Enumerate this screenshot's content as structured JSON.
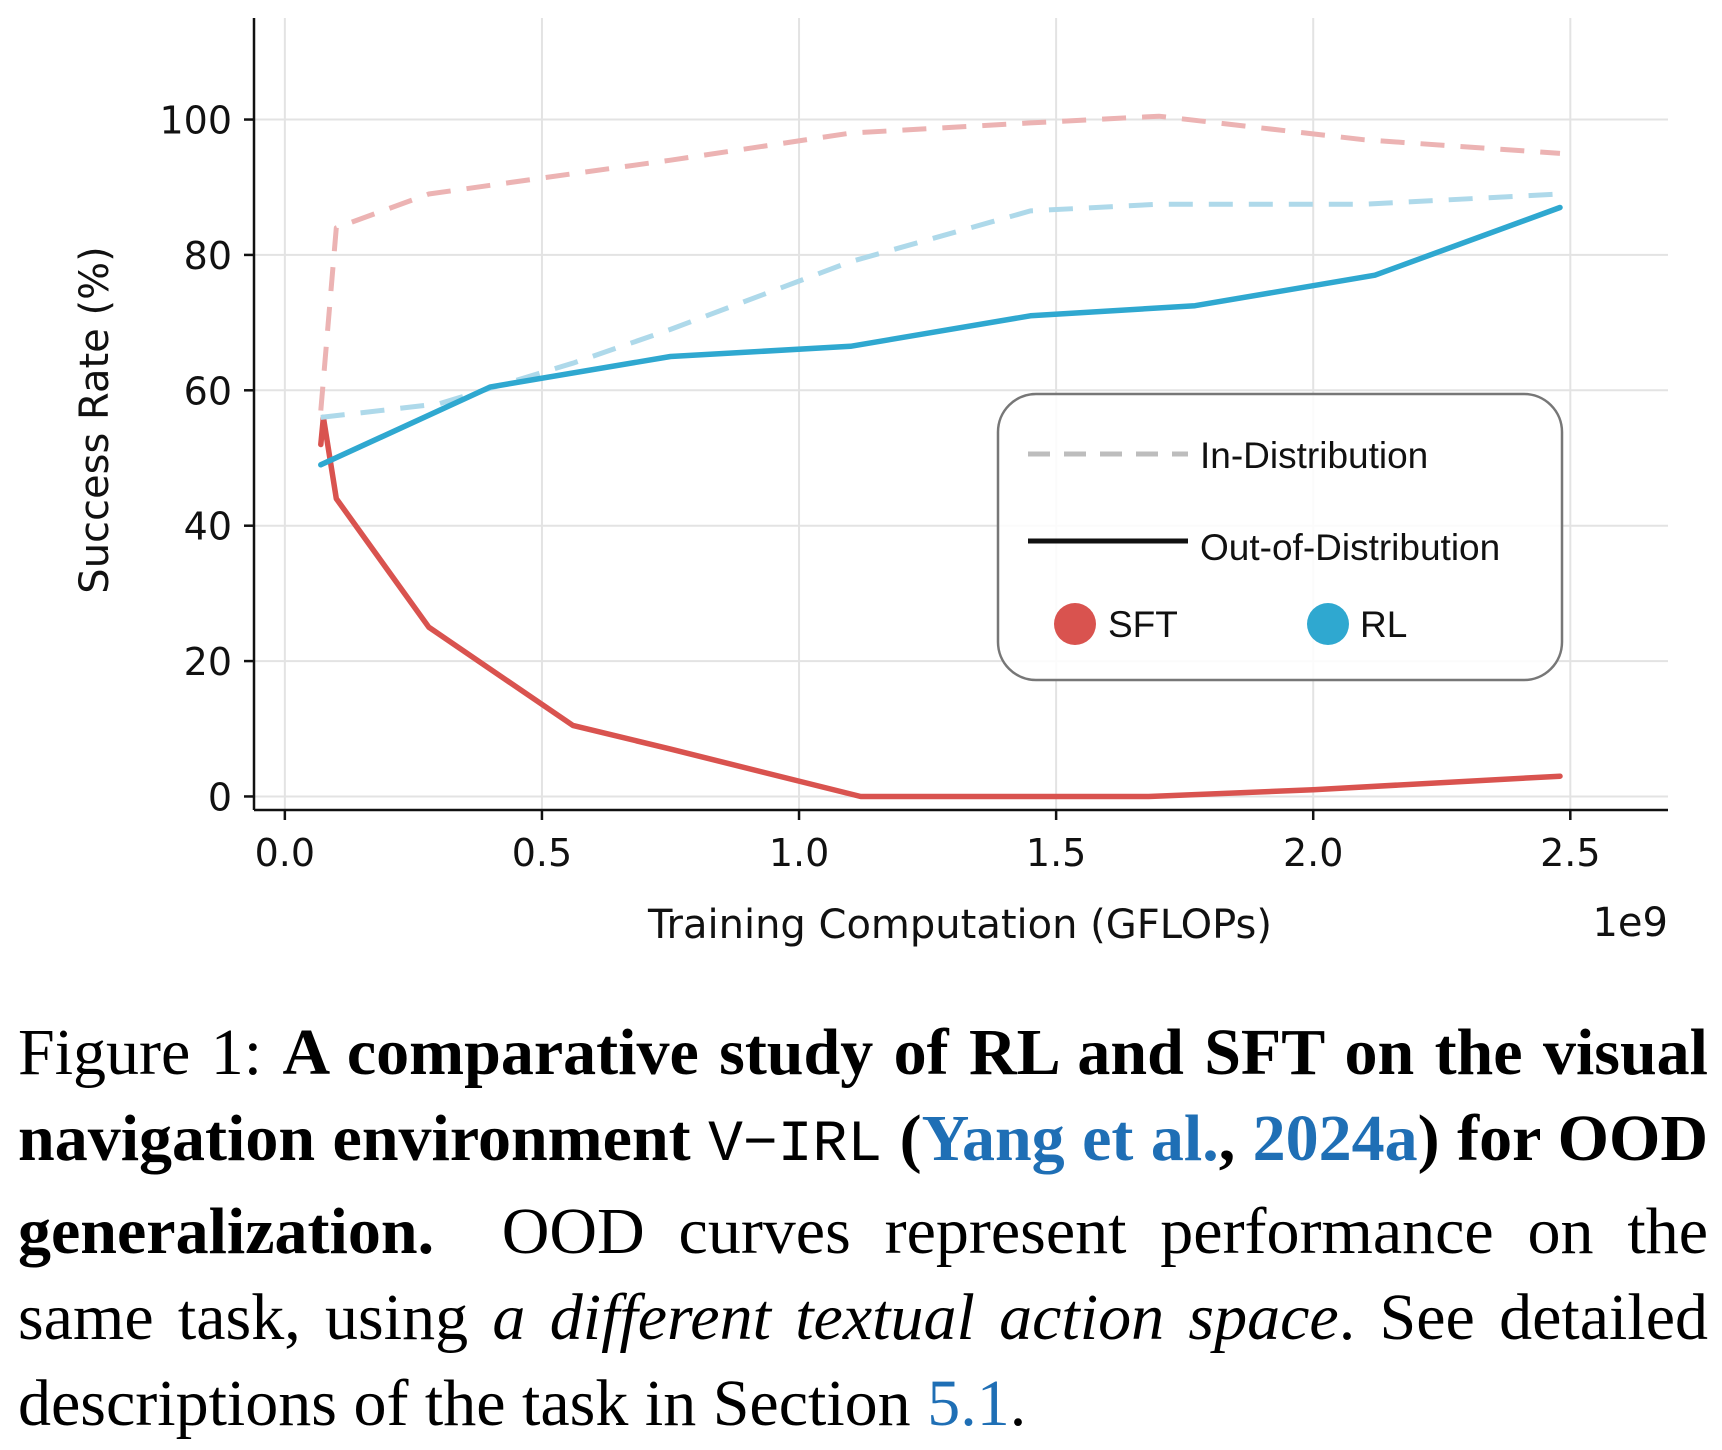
{
  "chart_data": {
    "type": "line",
    "xlabel": "Training Computation (GFLOPs)",
    "ylabel": "Success Rate (%)",
    "x_multiplier_label": "1e9",
    "xlim": [
      -0.06,
      2.69
    ],
    "ylim": [
      -2,
      115
    ],
    "x_ticks": [
      0.0,
      0.5,
      1.0,
      1.5,
      2.0,
      2.5
    ],
    "x_tick_labels": [
      "0.0",
      "0.5",
      "1.0",
      "1.5",
      "2.0",
      "2.5"
    ],
    "y_ticks": [
      0,
      20,
      40,
      60,
      80,
      100
    ],
    "y_tick_labels": [
      "0",
      "20",
      "40",
      "60",
      "80",
      "100"
    ],
    "grid": true,
    "legend_position": "center-right",
    "legend": {
      "style_entries": [
        {
          "label": "In-Distribution",
          "style": "dashed"
        },
        {
          "label": "Out-of-Distribution",
          "style": "solid"
        }
      ],
      "color_entries": [
        {
          "label": "SFT",
          "color": "#d9534f"
        },
        {
          "label": "RL",
          "color": "#2fa8d0"
        }
      ]
    },
    "series": [
      {
        "method": "SFT",
        "split": "In-Distribution",
        "color": "#ecb3b3",
        "dash": true,
        "x": [
          0.07,
          0.1,
          0.28,
          0.56,
          0.75,
          1.1,
          1.45,
          1.7,
          2.1,
          2.48
        ],
        "y": [
          57,
          84,
          89,
          92,
          94,
          98,
          99.5,
          100.5,
          97,
          95
        ]
      },
      {
        "method": "SFT",
        "split": "Out-of-Distribution",
        "color": "#d9534f",
        "dash": false,
        "x": [
          0.07,
          0.075,
          0.1,
          0.28,
          0.56,
          0.75,
          1.12,
          1.68,
          2.0,
          2.48
        ],
        "y": [
          52,
          56,
          44,
          25,
          10.5,
          7,
          0,
          0,
          1,
          3
        ]
      },
      {
        "method": "RL",
        "split": "In-Distribution",
        "color": "#aed9ea",
        "dash": true,
        "x": [
          0.07,
          0.3,
          0.56,
          0.75,
          1.1,
          1.45,
          1.7,
          2.1,
          2.48
        ],
        "y": [
          56,
          58,
          64,
          69,
          79,
          86.5,
          87.5,
          87.5,
          89
        ]
      },
      {
        "method": "RL",
        "split": "Out-of-Distribution",
        "color": "#2fa8d0",
        "dash": false,
        "x": [
          0.07,
          0.4,
          0.75,
          1.1,
          1.45,
          1.77,
          2.12,
          2.48
        ],
        "y": [
          49,
          60.5,
          65,
          66.5,
          71,
          72.5,
          77,
          87
        ]
      }
    ]
  },
  "caption": {
    "figure_label": "Figure 1:",
    "bold_part_1": "A comparative study of RL and SFT on the visual navigation environment",
    "env_name": "V−IRL",
    "cite_open": "(",
    "cite_author": "Yang et al.",
    "cite_sep": ", ",
    "cite_year": "2024a",
    "cite_close": ")",
    "bold_part_2": "for OOD generalization.",
    "body_1": "OOD curves represent performance on the same task, using",
    "italic_part": "a different textual action space",
    "body_2": ". See detailed descriptions of the task in Section",
    "section_ref": "5.1",
    "end": "."
  }
}
